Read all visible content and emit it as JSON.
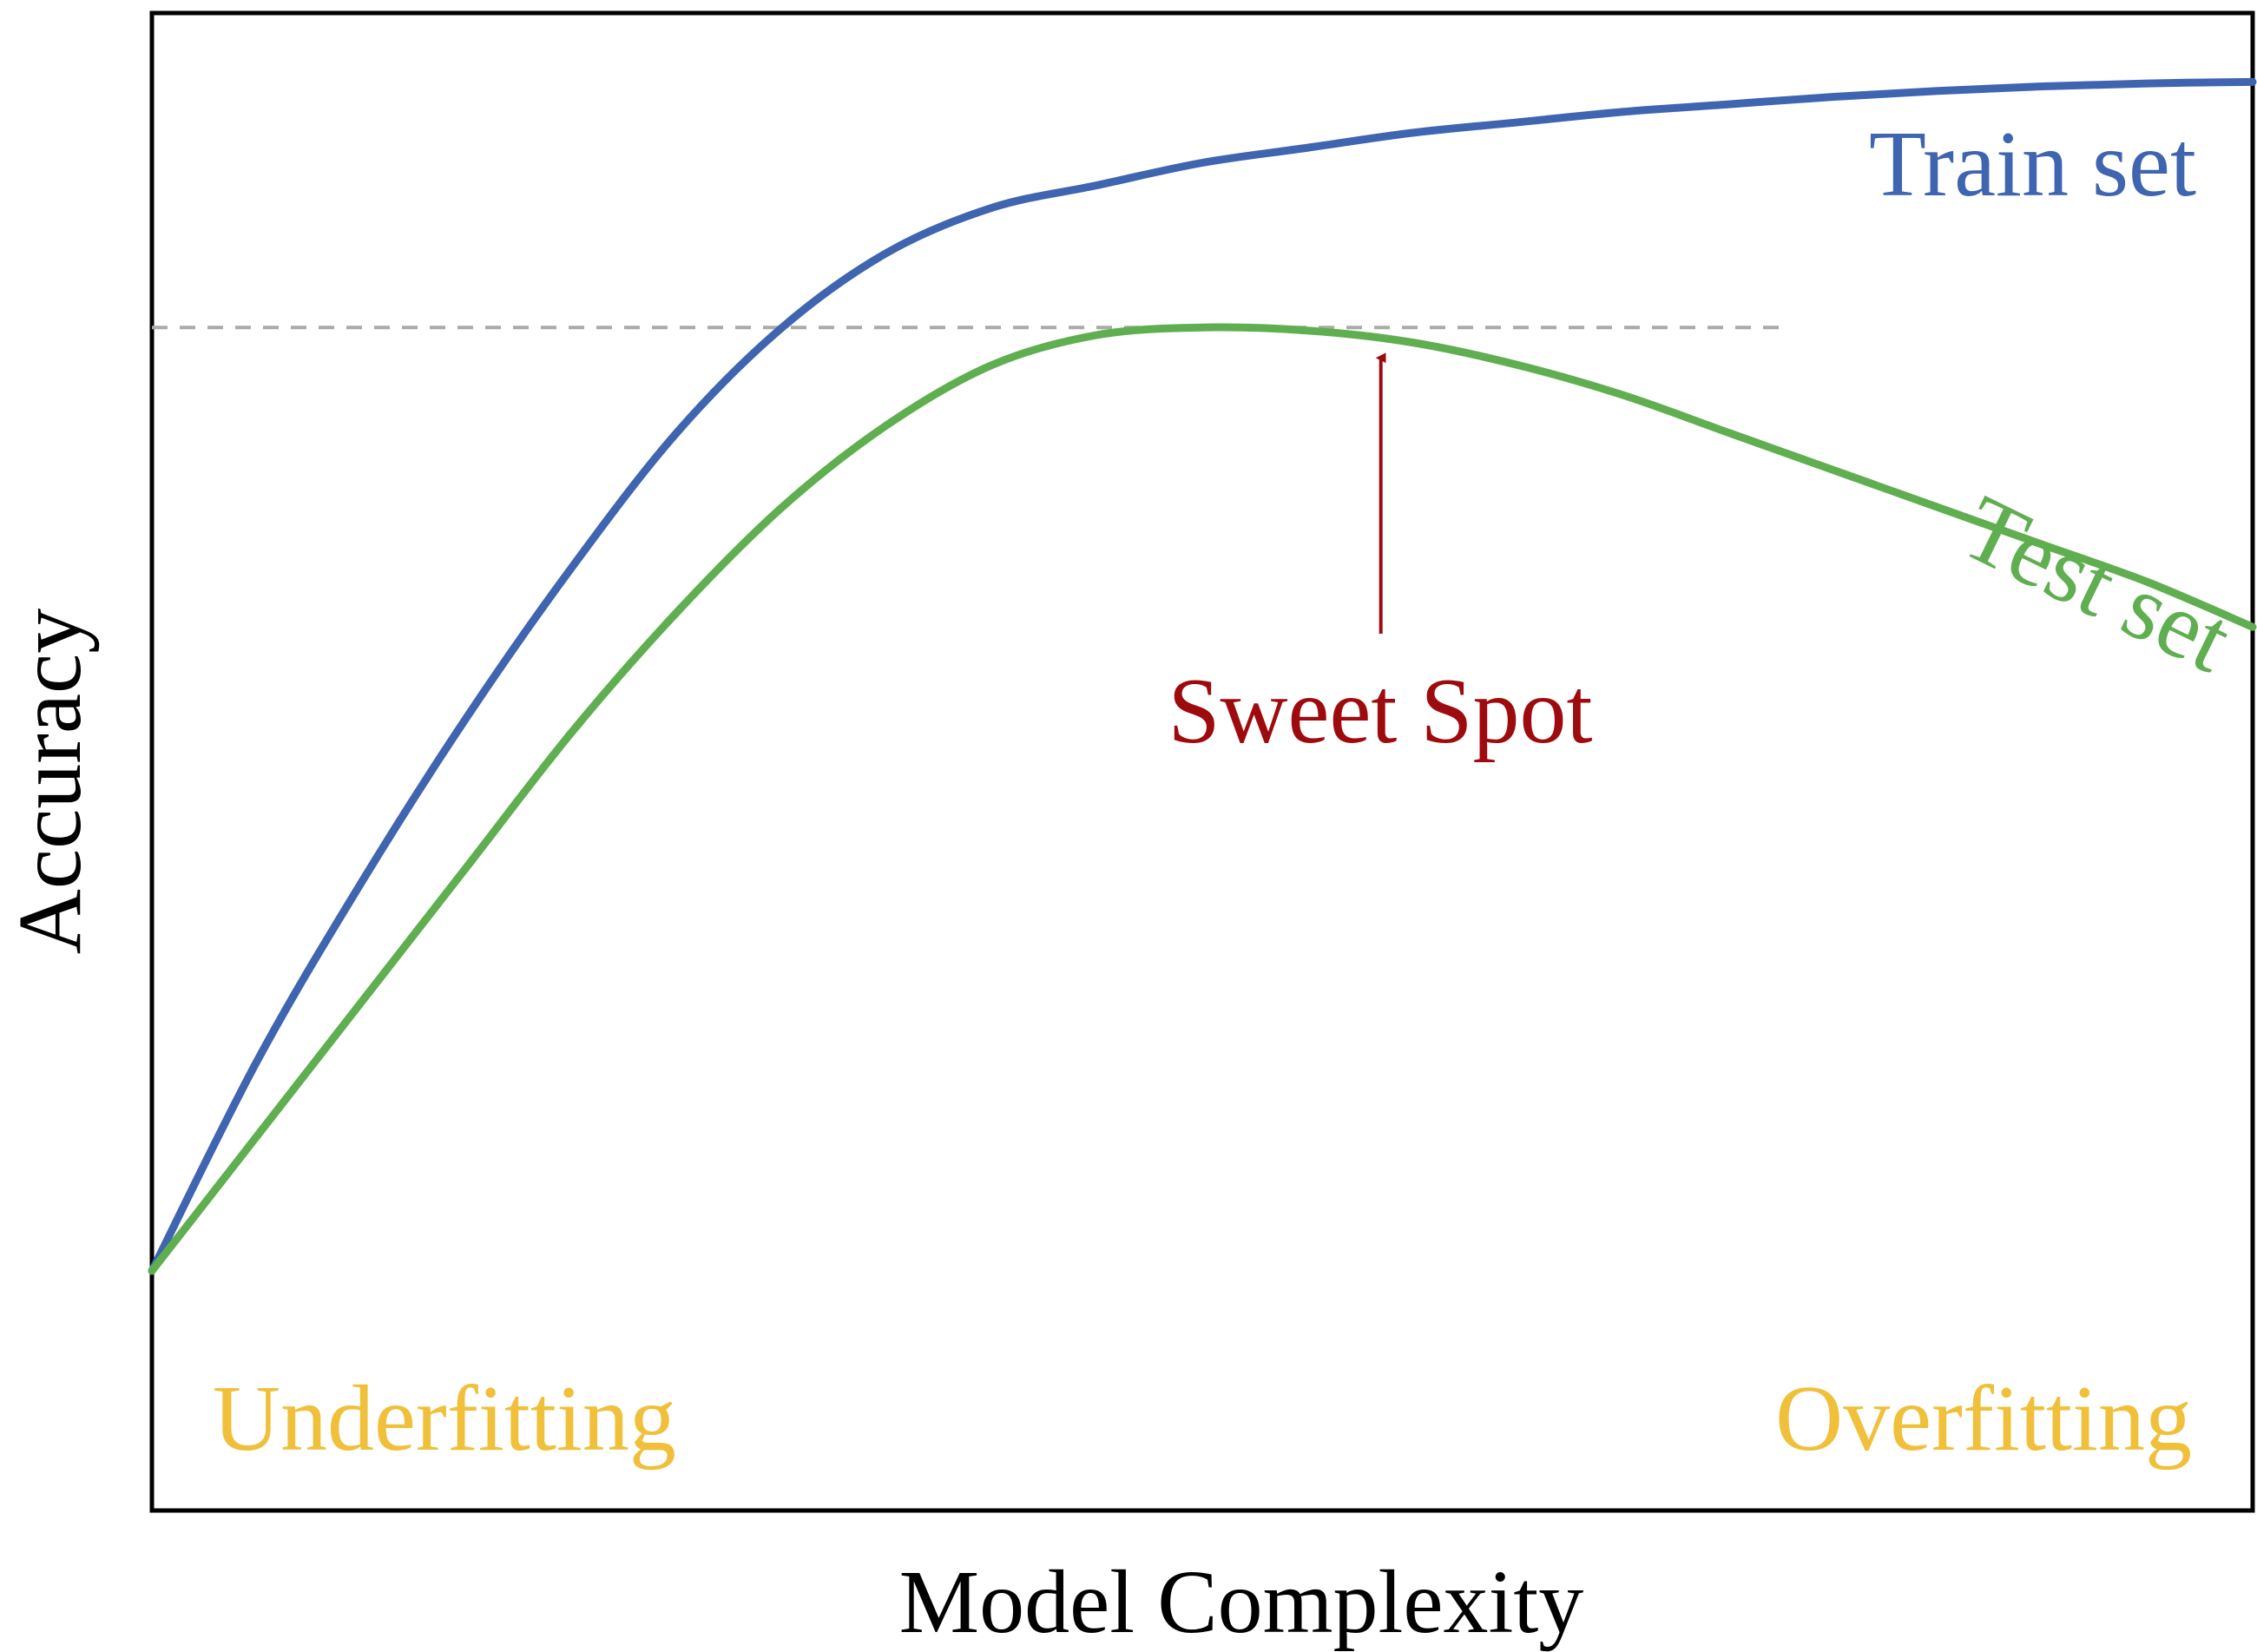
{
  "chart_data": {
    "type": "line",
    "xlabel": "Model Complexity",
    "ylabel": "Accuracy",
    "xlim": [
      0,
      1
    ],
    "ylim": [
      0,
      1
    ],
    "grid": false,
    "axis_ticks": false,
    "series": [
      {
        "name": "Train set",
        "color": "#3f64b0",
        "x": [
          0,
          0.05,
          0.1,
          0.15,
          0.2,
          0.25,
          0.3,
          0.35,
          0.4,
          0.45,
          0.5,
          0.55,
          0.6,
          0.65,
          0.7,
          0.75,
          0.8,
          0.85,
          0.9,
          0.95,
          1.0
        ],
        "y": [
          0.16,
          0.3,
          0.42,
          0.53,
          0.63,
          0.72,
          0.79,
          0.84,
          0.87,
          0.885,
          0.9,
          0.91,
          0.92,
          0.927,
          0.934,
          0.939,
          0.944,
          0.948,
          0.951,
          0.953,
          0.954
        ]
      },
      {
        "name": "Test set",
        "color": "#5fae50",
        "x": [
          0,
          0.05,
          0.1,
          0.15,
          0.2,
          0.25,
          0.3,
          0.35,
          0.4,
          0.45,
          0.5,
          0.55,
          0.6,
          0.65,
          0.7,
          0.75,
          0.8,
          0.85,
          0.9,
          0.95,
          1.0
        ],
        "y": [
          0.16,
          0.25,
          0.34,
          0.43,
          0.52,
          0.6,
          0.67,
          0.725,
          0.765,
          0.785,
          0.79,
          0.788,
          0.78,
          0.765,
          0.745,
          0.72,
          0.695,
          0.67,
          0.645,
          0.62,
          0.59
        ]
      }
    ],
    "annotations": {
      "peak_reference": {
        "y": 0.79,
        "x_end": 0.78,
        "color": "#aaaaaa",
        "style": "dashed"
      },
      "sweet_spot": {
        "text": "Sweet Spot",
        "x": 0.585,
        "color": "#9e0b0f"
      },
      "underfitting": {
        "text": "Underfitting",
        "color": "#f0c03a"
      },
      "overfitting": {
        "text": "Overfitting",
        "color": "#f0c03a"
      }
    }
  }
}
